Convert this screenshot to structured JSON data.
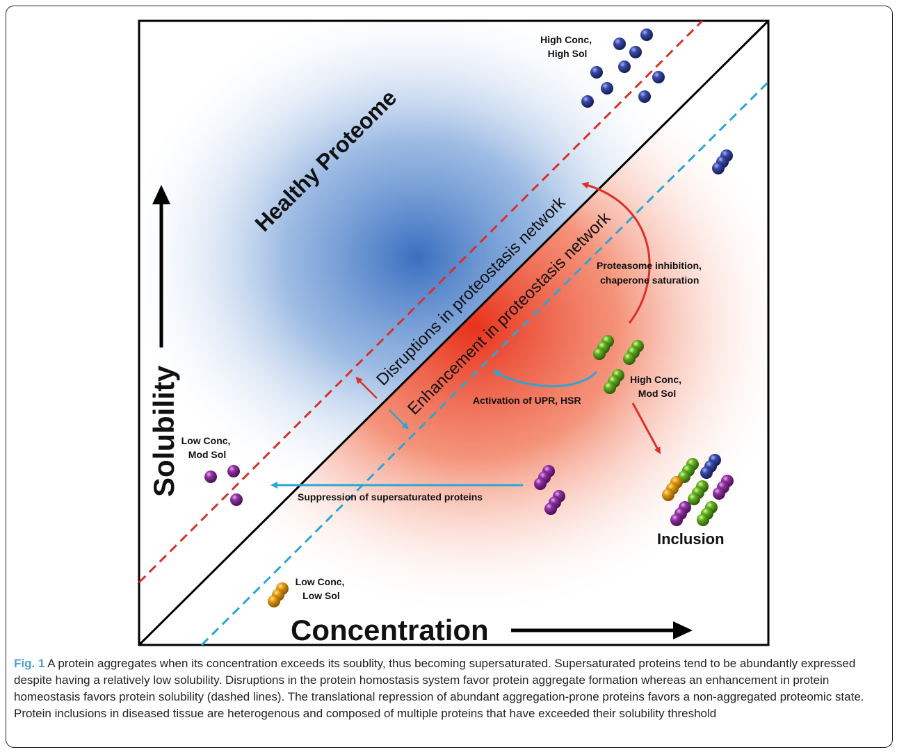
{
  "figure": {
    "axis_y_label": "Solubility",
    "axis_x_label": "Concentration",
    "region_label": "Healthy Proteome",
    "line_labels": {
      "disruptions": "Disruptions in proteostasis network",
      "enhancement": "Enhancement in proteostasis network"
    },
    "cluster_labels": {
      "high_conc_high_sol": [
        "High Conc,",
        "High Sol"
      ],
      "high_conc_mod_sol": [
        "High Conc,",
        "Mod Sol"
      ],
      "low_conc_mod_sol": [
        "Low Conc,",
        "Mod Sol"
      ],
      "low_conc_low_sol": [
        "Low Conc,",
        "Low Sol"
      ]
    },
    "arrow_labels": {
      "proteasome": [
        "Proteasome inhibition,",
        "chaperone saturation"
      ],
      "upr": "Activation of UPR, HSR",
      "suppression": "Suppression of supersaturated proteins"
    },
    "inclusion_label": "Inclusion",
    "colors": {
      "healthy": "#3a6fc0",
      "supersaturated": "#e8321c",
      "disruption_line": "#d9302a",
      "enhancement_line": "#2aa6d6",
      "protein_blue": "#2a3a8a",
      "protein_green": "#5aa81e",
      "protein_purple": "#8a2f9a",
      "protein_orange": "#e09a10"
    }
  },
  "caption": {
    "label": "Fig. 1",
    "text": " A protein aggregates when its concentration exceeds its soublity, thus becoming supersaturated. Supersaturated proteins tend to be abundantly expressed despite having a relatively low solubility. Disruptions in the protein homostasis system favor protein aggregate formation whereas an enhancement in protein homeostasis favors protein solubility (dashed lines). The translational repression of abundant aggregation-prone proteins favors a non-aggregated proteomic state. Protein inclusions in diseased tissue are heterogenous and composed of multiple proteins that have exceeded their solubility threshold"
  }
}
